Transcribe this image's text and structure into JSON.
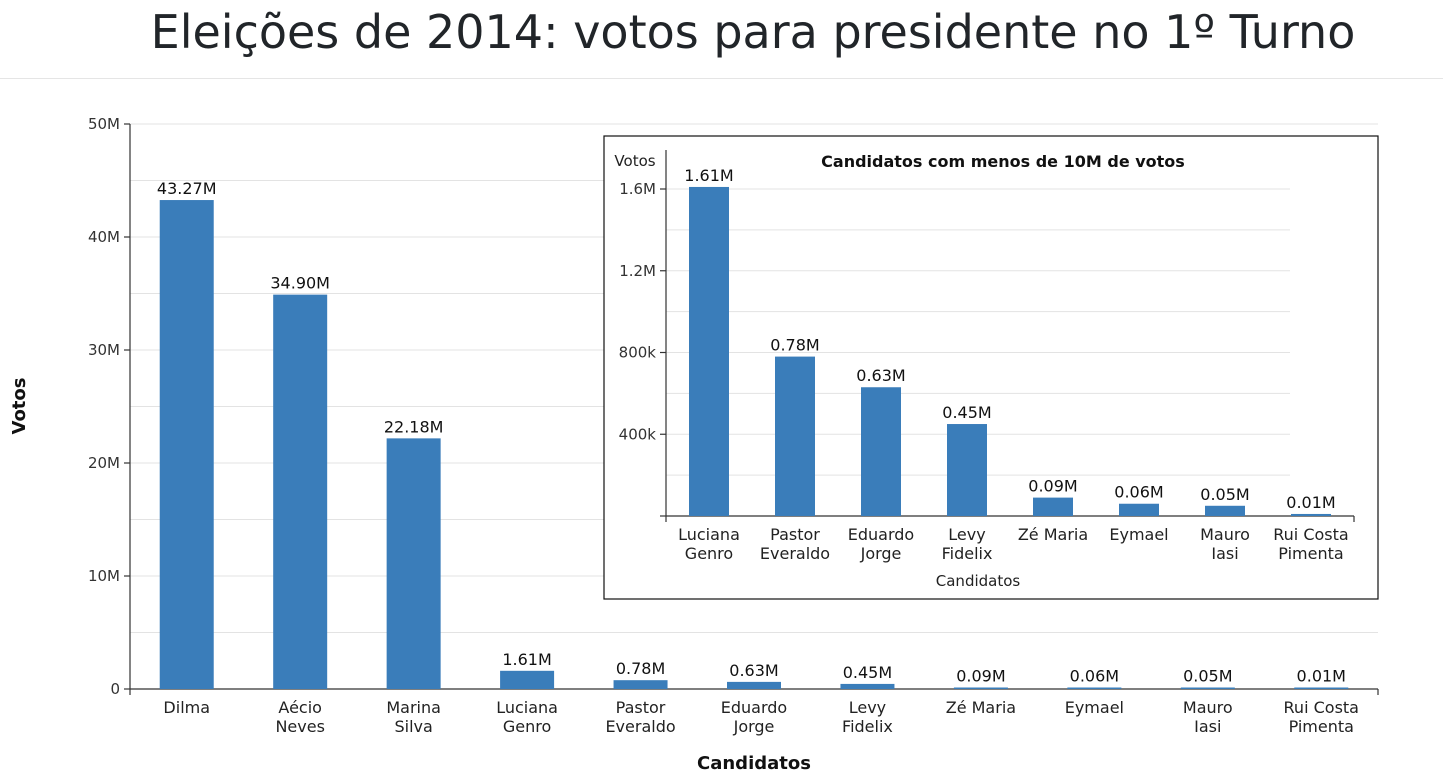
{
  "header": {
    "title": "Eleições de 2014: votos para presidente no 1º Turno"
  },
  "colors": {
    "bar": "#3a7dba",
    "grid": "#e3e3e3",
    "axis": "#333333"
  },
  "chart_data": [
    {
      "type": "bar",
      "title": "",
      "xlabel": "Candidatos",
      "ylabel": "Votos",
      "ylim": [
        0,
        50000000
      ],
      "y_ticks": [
        0,
        10000000,
        20000000,
        30000000,
        40000000,
        50000000
      ],
      "y_tick_labels": [
        "0",
        "10M",
        "20M",
        "30M",
        "40M",
        "50M"
      ],
      "grid": true,
      "categories": [
        [
          "Dilma"
        ],
        [
          "Aécio",
          "Neves"
        ],
        [
          "Marina",
          "Silva"
        ],
        [
          "Luciana",
          "Genro"
        ],
        [
          "Pastor",
          "Everaldo"
        ],
        [
          "Eduardo",
          "Jorge"
        ],
        [
          "Levy",
          "Fidelix"
        ],
        [
          "Zé Maria"
        ],
        [
          "Eymael"
        ],
        [
          "Mauro",
          "Iasi"
        ],
        [
          "Rui Costa",
          "Pimenta"
        ]
      ],
      "values": [
        43270000,
        34900000,
        22180000,
        1610000,
        780000,
        630000,
        450000,
        90000,
        60000,
        50000,
        10000
      ],
      "data_labels": [
        "43.27M",
        "34.90M",
        "22.18M",
        "1.61M",
        "0.78M",
        "0.63M",
        "0.45M",
        "0.09M",
        "0.06M",
        "0.05M",
        "0.01M"
      ]
    },
    {
      "type": "bar",
      "title": "Candidatos com menos de 10M de votos",
      "xlabel": "Candidatos",
      "ylabel": "Votos",
      "ylim": [
        0,
        1750000
      ],
      "y_ticks": [
        0,
        400000,
        800000,
        1200000,
        1600000
      ],
      "y_tick_labels": [
        "",
        "400k",
        "800k",
        "1.2M",
        "1.6M"
      ],
      "grid": true,
      "categories": [
        [
          "Luciana",
          "Genro"
        ],
        [
          "Pastor",
          "Everaldo"
        ],
        [
          "Eduardo",
          "Jorge"
        ],
        [
          "Levy",
          "Fidelix"
        ],
        [
          "Zé Maria"
        ],
        [
          "Eymael"
        ],
        [
          "Mauro",
          "Iasi"
        ],
        [
          "Rui Costa",
          "Pimenta"
        ]
      ],
      "values": [
        1610000,
        780000,
        630000,
        450000,
        90000,
        60000,
        50000,
        10000
      ],
      "data_labels": [
        "1.61M",
        "0.78M",
        "0.63M",
        "0.45M",
        "0.09M",
        "0.06M",
        "0.05M",
        "0.01M"
      ]
    }
  ]
}
